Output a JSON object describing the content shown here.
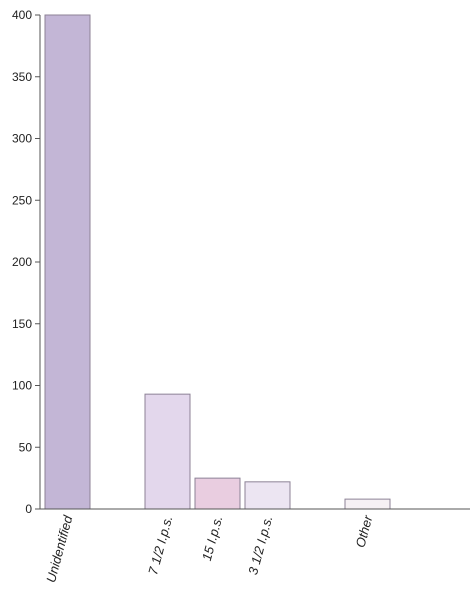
{
  "chart_data": {
    "type": "bar",
    "title": "",
    "xlabel": "",
    "ylabel": "",
    "ylim": [
      0,
      400
    ],
    "yticks": [
      0,
      50,
      100,
      150,
      200,
      250,
      300,
      350,
      400
    ],
    "grid": false,
    "categories": [
      "Unidentified",
      "",
      "7 1/2 I.p.s.",
      "15 I.p.s.",
      "3 1/2 I.p.s.",
      "",
      "Other"
    ],
    "values": [
      400,
      0,
      93,
      25,
      22,
      0,
      8
    ],
    "colors": [
      "#c3b6d6",
      "#ffffff",
      "#e3d7ec",
      "#e9cde0",
      "#ece5f2",
      "#ffffff",
      "#f6f1f4"
    ]
  }
}
